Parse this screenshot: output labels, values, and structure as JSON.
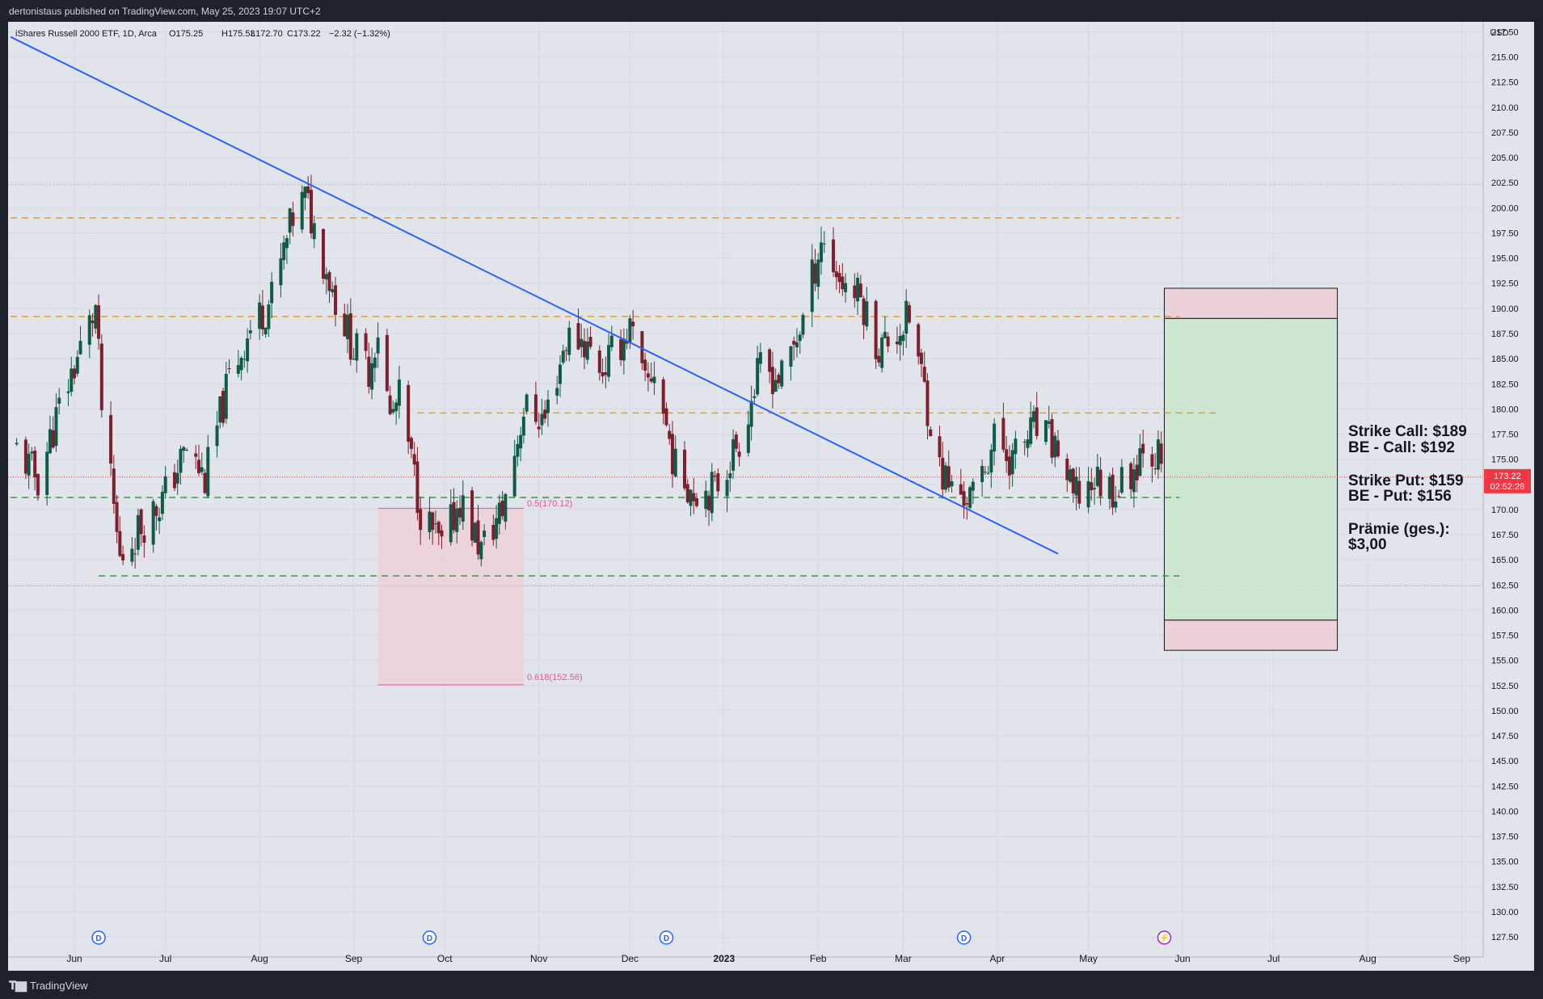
{
  "header": {
    "published": "dertonistaus published on TradingView.com, May 25, 2023 19:07 UTC+2"
  },
  "footer": {
    "brand": "TradingView"
  },
  "colors": {
    "up": "#0f5b46",
    "down": "#7d1f2c",
    "trendline": "#2962ff",
    "resistance": "#ff9800",
    "support": "#3a9a48",
    "fib": "#e05a8a",
    "profit_zone": "#c8e6c9",
    "loss_zone": "#f2c9d2",
    "price_label": "#f23645"
  },
  "chart_data": {
    "type": "candlestick",
    "instrument": "iShares Russell 2000 ETF, 1D, Arca",
    "ohlc_legend": {
      "o": "O175.25",
      "h": "H175.53",
      "l": "L172.70",
      "c": "C173.22",
      "chg": "−2.32 (−1.32%)"
    },
    "currency": "USD",
    "ylim": [
      125.5,
      218.5
    ],
    "y_ticks": [
      "127.50",
      "130.00",
      "132.50",
      "135.00",
      "137.50",
      "140.00",
      "142.50",
      "145.00",
      "147.50",
      "150.00",
      "152.50",
      "155.00",
      "157.50",
      "160.00",
      "162.50",
      "165.00",
      "167.50",
      "170.00",
      "172.50",
      "175.00",
      "177.50",
      "180.00",
      "182.50",
      "185.00",
      "187.50",
      "190.00",
      "192.50",
      "195.00",
      "197.50",
      "200.00",
      "202.50",
      "205.00",
      "207.50",
      "210.00",
      "212.50",
      "215.00",
      "217.50"
    ],
    "x_labels": [
      {
        "label": "Jun",
        "date": "2022-06-01"
      },
      {
        "label": "Jul",
        "date": "2022-07-01"
      },
      {
        "label": "Aug",
        "date": "2022-08-01"
      },
      {
        "label": "Sep",
        "date": "2022-09-01"
      },
      {
        "label": "Oct",
        "date": "2022-10-01"
      },
      {
        "label": "Nov",
        "date": "2022-11-01"
      },
      {
        "label": "Dec",
        "date": "2022-12-01"
      },
      {
        "label": "2023",
        "date": "2023-01-01"
      },
      {
        "label": "Feb",
        "date": "2023-02-01"
      },
      {
        "label": "Mar",
        "date": "2023-03-01"
      },
      {
        "label": "Apr",
        "date": "2023-04-01"
      },
      {
        "label": "May",
        "date": "2023-05-01"
      },
      {
        "label": "Jun",
        "date": "2023-06-01"
      },
      {
        "label": "Jul",
        "date": "2023-07-01"
      },
      {
        "label": "Aug",
        "date": "2023-08-01"
      },
      {
        "label": "Sep",
        "date": "2023-09-01"
      }
    ],
    "dividend_markers": [
      "2022-06-09",
      "2022-09-26",
      "2022-12-13",
      "2023-03-21"
    ],
    "earnings_marker": "2023-05-26",
    "last_price": {
      "value": 173.22,
      "label": "173.22",
      "countdown": "02:52:28"
    },
    "close_path": [
      [
        "2022-05-13",
        176
      ],
      [
        "2022-05-20",
        173
      ],
      [
        "2022-05-27",
        180
      ],
      [
        "2022-06-03",
        186
      ],
      [
        "2022-06-08",
        190
      ],
      [
        "2022-06-10",
        180
      ],
      [
        "2022-06-16",
        165
      ],
      [
        "2022-06-22",
        168
      ],
      [
        "2022-06-30",
        171
      ],
      [
        "2022-07-08",
        176
      ],
      [
        "2022-07-14",
        173
      ],
      [
        "2022-07-22",
        183
      ],
      [
        "2022-07-29",
        188
      ],
      [
        "2022-08-05",
        191
      ],
      [
        "2022-08-12",
        199
      ],
      [
        "2022-08-16",
        201
      ],
      [
        "2022-08-19",
        198
      ],
      [
        "2022-08-26",
        191
      ],
      [
        "2022-09-01",
        186
      ],
      [
        "2022-09-06",
        184
      ],
      [
        "2022-09-09",
        188
      ],
      [
        "2022-09-13",
        179
      ],
      [
        "2022-09-16",
        181
      ],
      [
        "2022-09-23",
        170
      ],
      [
        "2022-09-30",
        166
      ],
      [
        "2022-10-06",
        171
      ],
      [
        "2022-10-13",
        166
      ],
      [
        "2022-10-20",
        170
      ],
      [
        "2022-10-27",
        180
      ],
      [
        "2022-11-03",
        179
      ],
      [
        "2022-11-10",
        187
      ],
      [
        "2022-11-15",
        187
      ],
      [
        "2022-11-22",
        184
      ],
      [
        "2022-12-01",
        188
      ],
      [
        "2022-12-06",
        182
      ],
      [
        "2022-12-09",
        184
      ],
      [
        "2022-12-16",
        174
      ],
      [
        "2022-12-22",
        172
      ],
      [
        "2022-12-29",
        172
      ],
      [
        "2023-01-06",
        177
      ],
      [
        "2023-01-13",
        184
      ],
      [
        "2023-01-20",
        183
      ],
      [
        "2023-01-27",
        189
      ],
      [
        "2023-02-02",
        197
      ],
      [
        "2023-02-08",
        193
      ],
      [
        "2023-02-15",
        191
      ],
      [
        "2023-02-21",
        186
      ],
      [
        "2023-02-28",
        188
      ],
      [
        "2023-03-03",
        189
      ],
      [
        "2023-03-08",
        182
      ],
      [
        "2023-03-13",
        174
      ],
      [
        "2023-03-17",
        172
      ],
      [
        "2023-03-24",
        171
      ],
      [
        "2023-03-31",
        177
      ],
      [
        "2023-04-06",
        175
      ],
      [
        "2023-04-13",
        178
      ],
      [
        "2023-04-21",
        176
      ],
      [
        "2023-04-26",
        171
      ],
      [
        "2023-05-03",
        173
      ],
      [
        "2023-05-10",
        172
      ],
      [
        "2023-05-16",
        174
      ],
      [
        "2023-05-19",
        177
      ],
      [
        "2023-05-24",
        175.3
      ],
      [
        "2023-05-25",
        173.22
      ]
    ],
    "trendline": {
      "from": [
        "2022-05-11",
        217.0
      ],
      "to": [
        "2023-04-21",
        165.6
      ]
    },
    "horizontal_levels": [
      {
        "kind": "resistance",
        "y": 199.0,
        "from": "2022-05-11",
        "to": "2023-05-31"
      },
      {
        "kind": "resistance",
        "y": 189.2,
        "from": "2022-05-11",
        "to": "2023-05-31"
      },
      {
        "kind": "resistance",
        "y": 179.6,
        "from": "2022-09-22",
        "to": "2023-06-12"
      },
      {
        "kind": "support",
        "y": 171.2,
        "from": "2022-05-11",
        "to": "2023-05-31"
      },
      {
        "kind": "support",
        "y": 163.4,
        "from": "2022-06-09",
        "to": "2023-05-31"
      }
    ],
    "fib_zone": {
      "from": "2022-09-09",
      "to": "2022-10-27",
      "top": 170.12,
      "bottom": 152.56,
      "label_top": "0.5(170.12)",
      "label_bottom": "0.618(152.56)"
    },
    "options_box": {
      "from": "2023-05-26",
      "to": "2023-07-22",
      "top": 192,
      "upper": 189,
      "lower": 159,
      "bottom": 156
    },
    "annotations": [
      {
        "id": "call",
        "line1": "Strike Call: $189",
        "line2": "BE - Call: $192"
      },
      {
        "id": "put",
        "line1": "Strike Put: $159",
        "line2": "BE - Put: $156"
      },
      {
        "id": "premium",
        "line1": "Prämie (ges.):",
        "line2": "$3,00"
      }
    ]
  }
}
